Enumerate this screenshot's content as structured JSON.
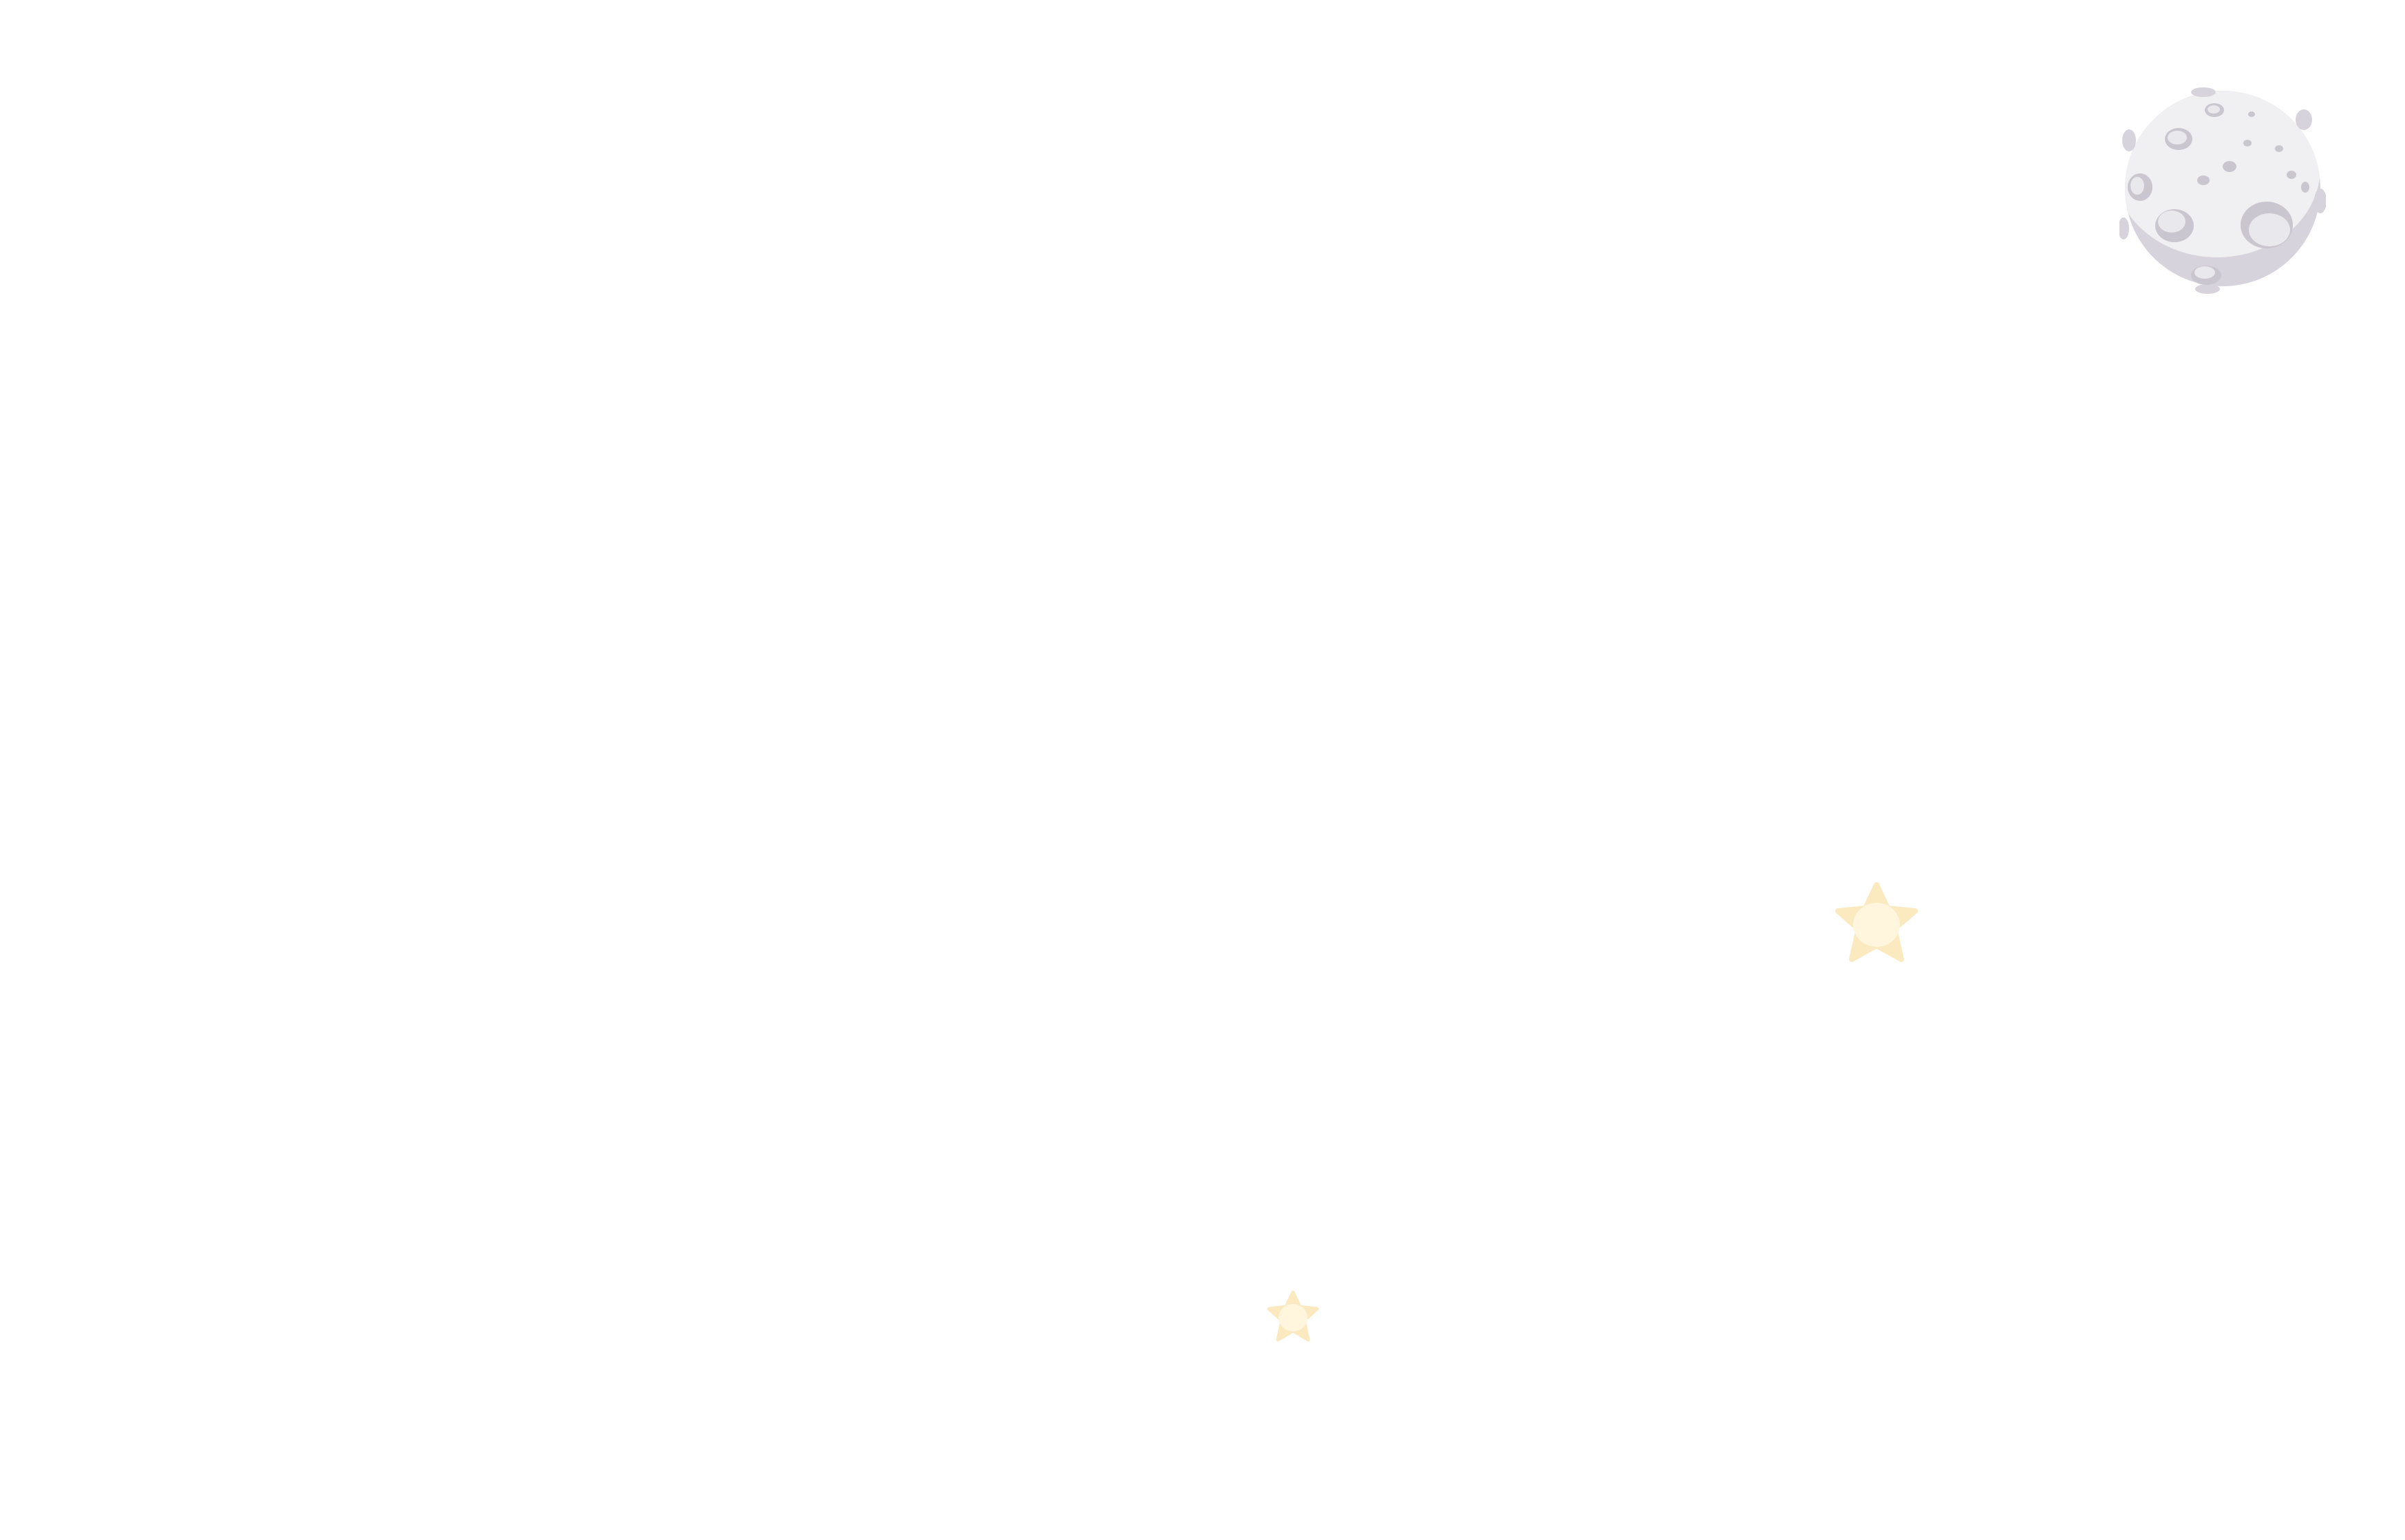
{
  "scene": {
    "background_color": "#ffffff",
    "moon": {
      "icon": "moon-icon",
      "colors": {
        "surface": "#f0eff2",
        "shadow": "#d6d3dc",
        "crater": "#c9c6cf",
        "crater_inner": "#e9e8ec"
      }
    },
    "stars": [
      {
        "icon": "star-icon",
        "size": "large",
        "colors": {
          "outer": "#fbe9bf",
          "inner": "#fff6dd"
        }
      },
      {
        "icon": "star-icon",
        "size": "small",
        "colors": {
          "outer": "#fbe9bf",
          "inner": "#fff6dd"
        }
      }
    ]
  }
}
